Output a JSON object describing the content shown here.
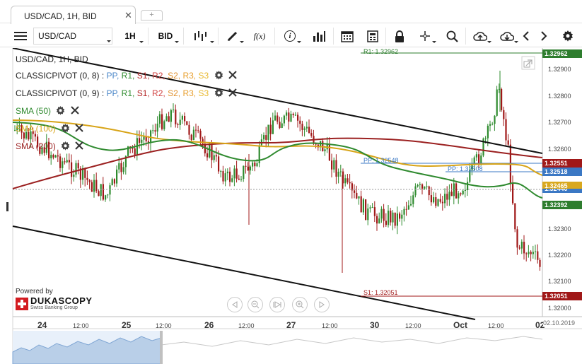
{
  "tab": {
    "title": "USD/CAD, 1H, BID",
    "close": "✕",
    "add": "+"
  },
  "toolbar": {
    "instrument": "USD/CAD",
    "period": "1H",
    "side": "BID",
    "fx_label": "f(x)",
    "info_label": "i"
  },
  "legend": {
    "title": "USD/CAD, 1H, BID",
    "pivot1": {
      "name": "CLASSICPIVOT (0, 8)",
      "sep": ":"
    },
    "pivot2": {
      "name": "CLASSICPIVOT (0, 9)",
      "sep": ":"
    },
    "pivot_levels": [
      {
        "label": "PP,",
        "color": "#4a86c8"
      },
      {
        "label": "R1,",
        "color": "#2e8b2e"
      },
      {
        "label": "S1,",
        "color": "#b22222"
      },
      {
        "label": "R2,",
        "color": "#d04040"
      },
      {
        "label": "S2,",
        "color": "#e0902e"
      },
      {
        "label": "R3,",
        "color": "#e8a030"
      },
      {
        "label": "S3",
        "color": "#e8b82e"
      }
    ],
    "sma50": {
      "name": "SMA (50)",
      "color": "#2f8a2f"
    },
    "sma100": {
      "name": "SMA (100)",
      "color": "#d8a418"
    },
    "sma200": {
      "name": "SMA (200)",
      "color": "#9b2020"
    }
  },
  "price_axis": {
    "ticks": [
      "1.32900",
      "1.32800",
      "1.32700",
      "1.32600",
      "1.32300",
      "1.32200",
      "1.32100",
      "1.32000"
    ],
    "tags": [
      {
        "value": "1.32962",
        "color": "#2e7d2e"
      },
      {
        "value": "1.32551",
        "color": "#a01818"
      },
      {
        "value": "1.32518",
        "color": "#3b78c4"
      },
      {
        "value": "1.32465",
        "color": "#d9a81e"
      },
      {
        "value": "1.32440",
        "color": "#3b78c4"
      },
      {
        "value": "1.32392",
        "color": "#2e7d2e"
      },
      {
        "value": "1.32051",
        "color": "#a01818"
      }
    ]
  },
  "level_labels": {
    "r1": "R1: 1.32962",
    "pp1": "PP: 1.32548",
    "pp2": "PP: 1.32508",
    "s1": "S1: 1.32051"
  },
  "time_axis": [
    {
      "label": "24",
      "day": true
    },
    {
      "label": "12:00",
      "day": false
    },
    {
      "label": "25",
      "day": true
    },
    {
      "label": "12:00",
      "day": false
    },
    {
      "label": "26",
      "day": true
    },
    {
      "label": "12:00",
      "day": false
    },
    {
      "label": "27",
      "day": true
    },
    {
      "label": "12:00",
      "day": false
    },
    {
      "label": "30",
      "day": true
    },
    {
      "label": "12:00",
      "day": false
    },
    {
      "label": "Oct",
      "day": true
    },
    {
      "label": "12:00",
      "day": false
    },
    {
      "label": "02",
      "day": true
    }
  ],
  "date_tag": "02.10.2019",
  "branding": {
    "powered": "Powered by",
    "name": "DUKASCOPY",
    "sub": "Swiss Banking Group"
  },
  "colors": {
    "bull": "#2e8b2e",
    "bear": "#a01818",
    "channel": "#111111",
    "r1": "#2e7d2e",
    "s1": "#a01818",
    "pp": "#3b78c4"
  }
}
